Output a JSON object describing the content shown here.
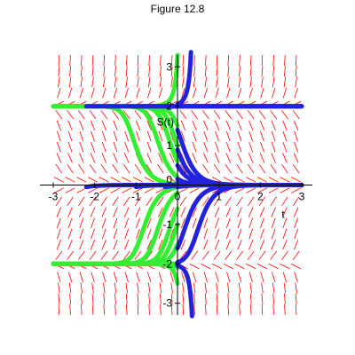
{
  "figure": {
    "title": "Figure 12.8"
  },
  "chart_data": {
    "type": "line",
    "title": "Figure 12.8",
    "xlabel": "t",
    "ylabel": "S(t)",
    "xlim": [
      -3,
      3
    ],
    "ylim": [
      -3.3,
      3.3
    ],
    "x_ticks": [
      -3,
      -2,
      -1,
      0,
      1,
      2,
      3
    ],
    "x_tick_labels": [
      "-3",
      "-2",
      "-1",
      "0",
      "1",
      "2",
      "3"
    ],
    "y_ticks": [
      -3,
      -2,
      -1,
      0,
      1,
      2,
      3
    ],
    "y_tick_labels": [
      "-3",
      "-2",
      "-1",
      "0",
      "1",
      "2",
      "3"
    ],
    "slope_field_color": "#ff0000",
    "grid": false,
    "equilibria": [
      2,
      0,
      -2
    ],
    "series": [
      {
        "color": "#33ee33",
        "direction": "backward",
        "t0": 0,
        "initial_values": [
          3.3,
          2,
          1.5,
          1,
          0.6,
          0.2,
          0.02,
          -0.05,
          -0.2,
          -0.6,
          -1,
          -1.5,
          -2,
          -2.1,
          -2.5
        ]
      },
      {
        "color": "#2222dd",
        "direction": "forward",
        "t0": -2.2,
        "initial_values": [
          2,
          -0.05
        ]
      },
      {
        "color": "#2222dd",
        "direction": "forward",
        "t0": -1,
        "initial_values": [
          2,
          -0.05
        ]
      },
      {
        "color": "#2222dd",
        "direction": "forward",
        "t0": -0.3,
        "initial_values": [
          2,
          -0.05
        ]
      },
      {
        "color": "#2222dd",
        "direction": "forward",
        "t0": 0,
        "initial_values": [
          3.3,
          2.05,
          1.4,
          0.9,
          0.5,
          0.15,
          0.05,
          -0.05,
          -1.6,
          -1.96,
          -2.04,
          -3.3
        ]
      }
    ]
  }
}
